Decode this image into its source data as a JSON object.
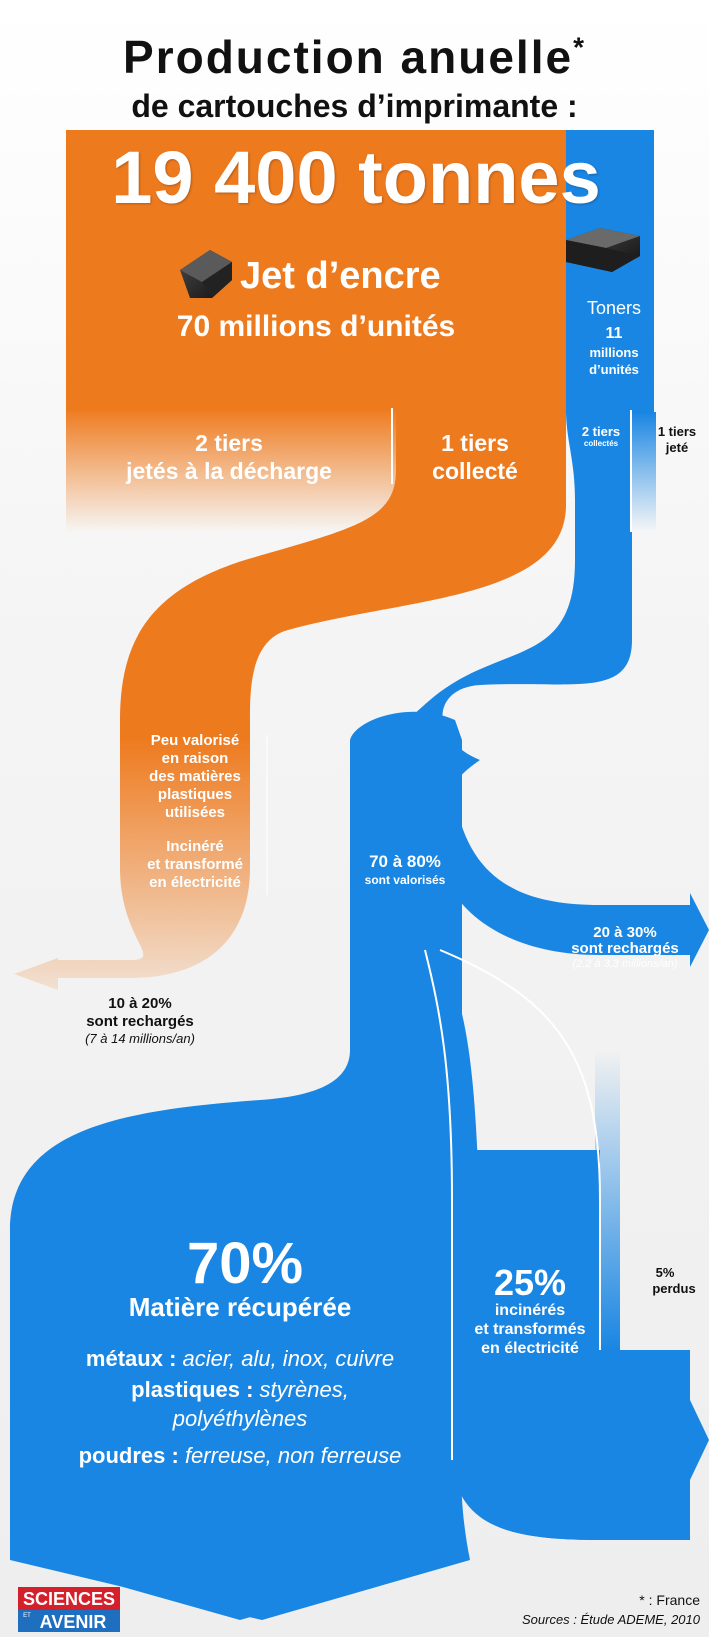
{
  "header": {
    "title_line1": "Production anuelle",
    "title_asterisk": "*",
    "title_line2": "de cartouches d’imprimante :",
    "total": "19 400 tonnes"
  },
  "inkjet": {
    "label": "Jet d’encre",
    "units": "70 millions d’unités",
    "discarded_line1": "2 tiers",
    "discarded_line2": "jetés à la décharge",
    "collected_line1": "1 tiers",
    "collected_line2": "collecté",
    "note_line1": "Peu valorisé",
    "note_line2": "en raison",
    "note_line3": "des matières",
    "note_line4": "plastiques",
    "note_line5": "utilisées",
    "note_line6": "Incinéré",
    "note_line7": "et transformé",
    "note_line8": "en électricité",
    "recharged_line1": "10 à 20%",
    "recharged_line2": "sont rechargés",
    "recharged_line3": "(7 à 14 millions/an)"
  },
  "toner": {
    "label": "Toners",
    "units_line1": "11",
    "units_line2": "millions",
    "units_line3": "d’unités",
    "collected_line1": "2 tiers",
    "collected_line2": "collectés",
    "discarded_line1": "1 tiers",
    "discarded_line2": "jeté",
    "valorised_line1": "70 à 80%",
    "valorised_line2": "sont valorisés",
    "recharged_line1": "20 à 30%",
    "recharged_line2": "sont rechargés",
    "recharged_line3": "(2,2 à 3,3 millions/an)"
  },
  "outcomes": {
    "recovered_pct": "70%",
    "recovered_label": "Matière récupérée",
    "metals_label": "métaux :",
    "metals_value": "acier, alu, inox, cuivre",
    "plastics_label": "plastiques :",
    "plastics_value_line1": "styrènes,",
    "plastics_value_line2": "polyéthylènes",
    "powders_label": "poudres :",
    "powders_value": "ferreuse, non ferreuse",
    "incinerated_pct": "25%",
    "incinerated_line1": "incinérés",
    "incinerated_line2": "et transformés",
    "incinerated_line3": "en électricité",
    "lost_pct": "5%",
    "lost_label": "perdus"
  },
  "footer": {
    "logo_line1": "SCIENCES",
    "logo_small": "ET",
    "logo_line2": "AVENIR",
    "footnote": "* : France",
    "sources": "Sources : Étude ADEME, 2010"
  },
  "colors": {
    "inkjet_orange": "#ee7a1e",
    "toner_blue": "#1a86e3",
    "logo_red": "#d3202a",
    "logo_blue": "#1f6fc0"
  },
  "icons": {
    "inkjet": "inkjet-cartridge-icon",
    "toner": "toner-cartridge-icon"
  }
}
